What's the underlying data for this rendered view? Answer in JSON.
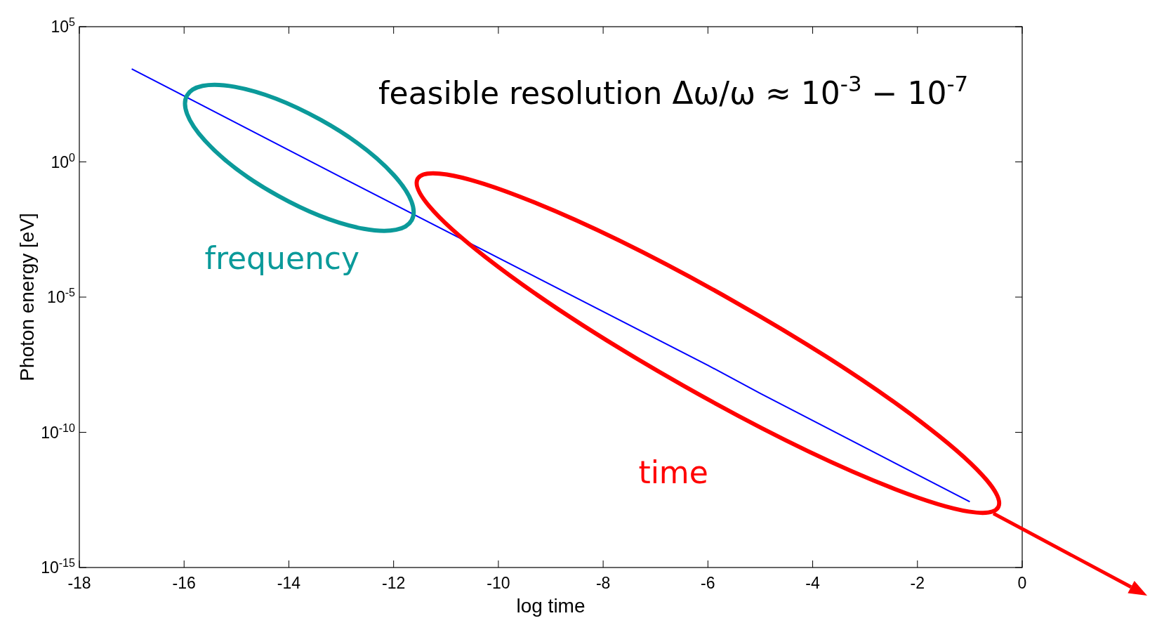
{
  "chart_data": {
    "type": "line",
    "xlabel": "log time",
    "ylabel": "Photon energy [eV]",
    "log": "y",
    "grid": false,
    "marker": "none",
    "line_style": "solid",
    "xlim": [
      -18,
      0
    ],
    "xticks": [
      -18,
      -16,
      -14,
      -12,
      -10,
      -8,
      -6,
      -4,
      -2,
      0
    ],
    "ylim": [
      1e-15,
      100000.0
    ],
    "yticks": [
      {
        "value": 1e-15,
        "label": "10$^{-15}$"
      },
      {
        "value": 1e-10,
        "label": "10$^{-10}$"
      },
      {
        "value": 1e-05,
        "label": "10$^{-5}$"
      },
      {
        "value": 1,
        "label": "10$^{0}$"
      },
      {
        "value": 100000.0,
        "label": "10$^{5}$"
      }
    ],
    "series": [
      {
        "color": "#0000ff",
        "x": [
          -17,
          -13,
          -6,
          -5,
          -1
        ],
        "values": [
          2750,
          0.27,
          3e-08,
          2.75e-09,
          2.7e-13
        ]
      }
    ],
    "annotations": [
      "feasible resolution Δω/ω ≈ 10$^{-3}$ − 10$^{-7}$",
      "frequency",
      "time"
    ]
  }
}
